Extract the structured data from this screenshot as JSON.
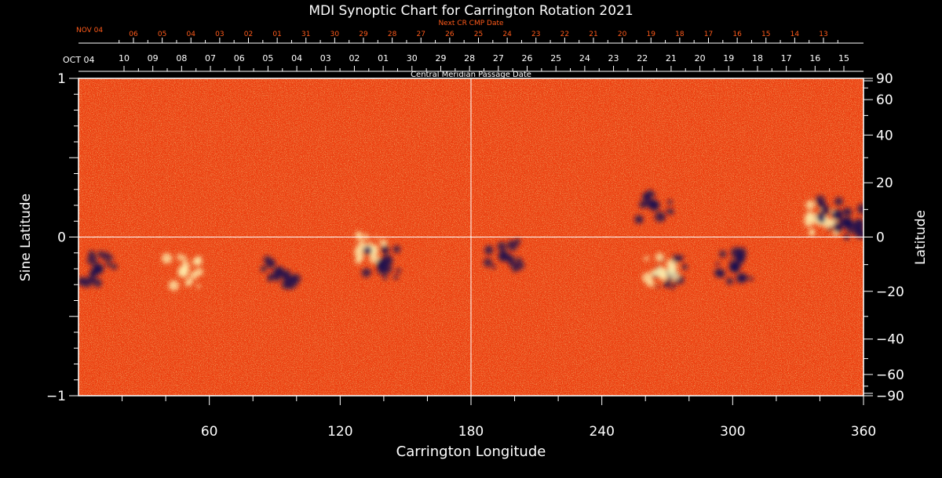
{
  "chart_data": {
    "type": "heatmap",
    "title": "MDI Synoptic Chart for Carrington Rotation 2021",
    "xlabel": "Carrington Longitude",
    "ylabel_left": "Sine Latitude",
    "ylabel_right": "Latitude",
    "xlim": [
      0,
      360
    ],
    "ylim": [
      -1,
      1
    ],
    "x_ticks": [
      60,
      120,
      180,
      240,
      300,
      360
    ],
    "y_ticks_left": [
      1,
      0,
      -1
    ],
    "y_ticks_right": [
      90,
      60,
      40,
      20,
      0,
      -20,
      -40,
      -60,
      -90
    ],
    "crosshair": {
      "longitude": 180,
      "sine_latitude": 0
    },
    "top_axis": {
      "label": "Central Meridian Passage Date",
      "first_label": "OCT 04",
      "dates": [
        "10",
        "09",
        "08",
        "07",
        "06",
        "05",
        "04",
        "03",
        "02",
        "01",
        "30",
        "29",
        "28",
        "27",
        "26",
        "25",
        "24",
        "23",
        "22",
        "21",
        "20",
        "19",
        "18",
        "17",
        "16",
        "15"
      ]
    },
    "next_cr_axis": {
      "label": "Next CR CMP Date",
      "first_label": "NOV 04",
      "dates": [
        "06",
        "05",
        "04",
        "03",
        "02",
        "01",
        "31",
        "30",
        "29",
        "28",
        "27",
        "26",
        "25",
        "24",
        "23",
        "22",
        "21",
        "20",
        "19",
        "18",
        "17",
        "16",
        "15",
        "14",
        "13"
      ]
    },
    "colors": {
      "background": "#000000",
      "map_base": "#ff4a10",
      "positive_polarity": "#fff2b0",
      "negative_polarity": "#1a1050",
      "next_cr_text": "#ff5a1a"
    },
    "active_regions": [
      {
        "lon": 9,
        "sinlat": -0.2,
        "polarity": "negative"
      },
      {
        "lon": 48,
        "sinlat": -0.22,
        "polarity": "positive"
      },
      {
        "lon": 92,
        "sinlat": -0.22,
        "polarity": "negative"
      },
      {
        "lon": 135,
        "sinlat": -0.08,
        "polarity": "positive"
      },
      {
        "lon": 139,
        "sinlat": -0.17,
        "polarity": "negative"
      },
      {
        "lon": 272,
        "sinlat": -0.23,
        "polarity": "negative"
      },
      {
        "lon": 267,
        "sinlat": -0.22,
        "polarity": "positive"
      },
      {
        "lon": 264,
        "sinlat": 0.2,
        "polarity": "negative"
      },
      {
        "lon": 341,
        "sinlat": 0.11,
        "polarity": "positive"
      },
      {
        "lon": 348,
        "sinlat": 0.14,
        "polarity": "negative"
      },
      {
        "lon": 358,
        "sinlat": 0.08,
        "polarity": "negative"
      },
      {
        "lon": 301,
        "sinlat": -0.19,
        "polarity": "negative"
      },
      {
        "lon": 195,
        "sinlat": -0.12,
        "polarity": "negative"
      }
    ]
  }
}
